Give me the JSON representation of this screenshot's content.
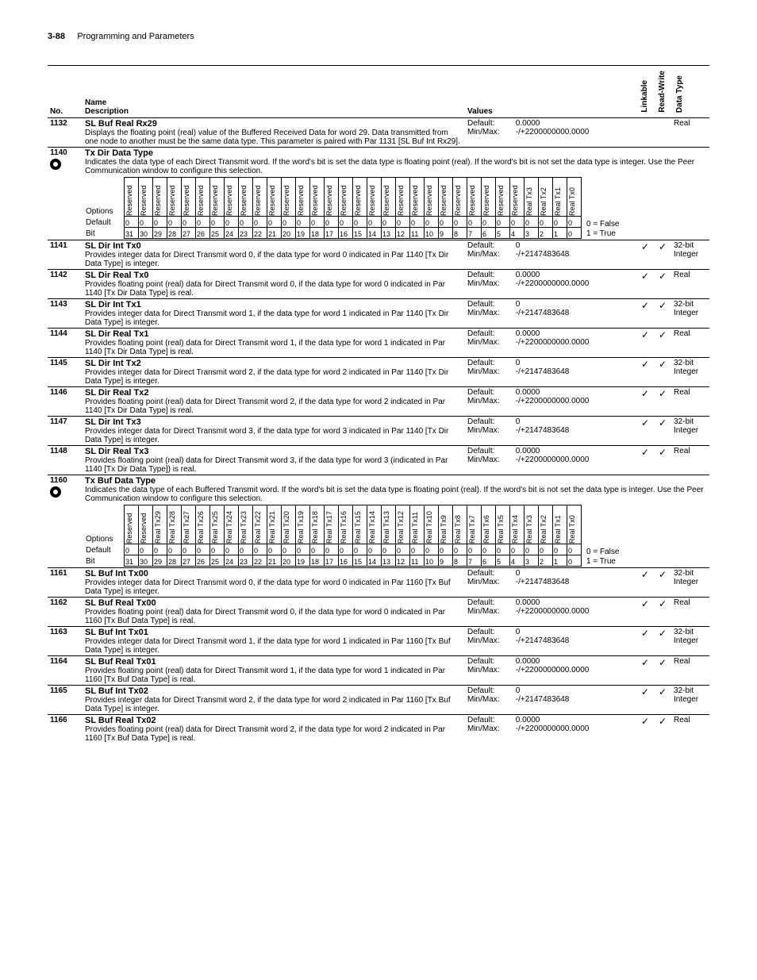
{
  "header": {
    "page_num": "3-88",
    "section": "Programming and Parameters"
  },
  "columns": {
    "no": "No.",
    "name_desc_line1": "Name",
    "name_desc_line2": "Description",
    "values": "Values",
    "linkable": "Linkable",
    "read_write": "Read-Write",
    "data_type": "Data Type"
  },
  "legend": {
    "falseText": "0 = False",
    "trueText": "1 = True"
  },
  "check_glyph": "✓",
  "bitfield1": {
    "optionsLabel": "Options",
    "defaultLabel": "Default",
    "bitLabel": "Bit",
    "headers": [
      "Reserved",
      "Reserved",
      "Reserved",
      "Reserved",
      "Reserved",
      "Reserved",
      "Reserved",
      "Reserved",
      "Reserved",
      "Reserved",
      "Reserved",
      "Reserved",
      "Reserved",
      "Reserved",
      "Reserved",
      "Reserved",
      "Reserved",
      "Reserved",
      "Reserved",
      "Reserved",
      "Reserved",
      "Reserved",
      "Reserved",
      "Reserved",
      "Reserved",
      "Reserved",
      "Reserved",
      "Reserved",
      "Real Tx3",
      "Real Tx2",
      "Real Tx1",
      "Real Tx0"
    ],
    "defaults": [
      "0",
      "0",
      "0",
      "0",
      "0",
      "0",
      "0",
      "0",
      "0",
      "0",
      "0",
      "0",
      "0",
      "0",
      "0",
      "0",
      "0",
      "0",
      "0",
      "0",
      "0",
      "0",
      "0",
      "0",
      "0",
      "0",
      "0",
      "0",
      "0",
      "0",
      "0",
      "0"
    ],
    "bits": [
      "31",
      "30",
      "29",
      "28",
      "27",
      "26",
      "25",
      "24",
      "23",
      "22",
      "21",
      "20",
      "19",
      "18",
      "17",
      "16",
      "15",
      "14",
      "13",
      "12",
      "11",
      "10",
      "9",
      "8",
      "7",
      "6",
      "5",
      "4",
      "3",
      "2",
      "1",
      "0"
    ]
  },
  "bitfield2": {
    "optionsLabel": "Options",
    "defaultLabel": "Default",
    "bitLabel": "Bit",
    "headers": [
      "Reserved",
      "Reserved",
      "Real Tx29",
      "Real Tx28",
      "Real Tx27",
      "Real Tx26",
      "Real Tx25",
      "Real Tx24",
      "Real Tx23",
      "Real Tx22",
      "Real Tx21",
      "Real Tx20",
      "Real Tx19",
      "Real Tx18",
      "Real Tx17",
      "Real Tx16",
      "Real Tx15",
      "Real Tx14",
      "Real Tx13",
      "Real Tx12",
      "Real Tx11",
      "Real Tx10",
      "Real Tx9",
      "Real Tx8",
      "Real Tx7",
      "Real Tx6",
      "Real Tx5",
      "Real Tx4",
      "Real Tx3",
      "Real Tx2",
      "Real Tx1",
      "Real Tx0"
    ],
    "defaults": [
      "0",
      "0",
      "0",
      "0",
      "0",
      "0",
      "0",
      "0",
      "0",
      "0",
      "0",
      "0",
      "0",
      "0",
      "0",
      "0",
      "0",
      "0",
      "0",
      "0",
      "0",
      "0",
      "0",
      "0",
      "0",
      "0",
      "0",
      "0",
      "0",
      "0",
      "0",
      "0"
    ],
    "bits": [
      "31",
      "30",
      "29",
      "28",
      "27",
      "26",
      "25",
      "24",
      "23",
      "22",
      "21",
      "20",
      "19",
      "18",
      "17",
      "16",
      "15",
      "14",
      "13",
      "12",
      "11",
      "10",
      "9",
      "8",
      "7",
      "6",
      "5",
      "4",
      "3",
      "2",
      "1",
      "0"
    ]
  },
  "rows": [
    {
      "no": "1132",
      "name": "SL Buf Real Rx29",
      "desc": "Displays the floating point (real) value of the Buffered Received Data for word 29. Data transmitted from one node to another must be the same data type. This parameter is paired with Par 1131 [SL Buf Int Rx29].",
      "v1l": "Default:",
      "v1": "0.0000",
      "v2l": "Min/Max:",
      "v2": "-/+2200000000.0000",
      "link": "",
      "rw": "",
      "dtype": "Real",
      "eye": false
    },
    {
      "no": "1140",
      "name": "Tx Dir Data Type",
      "desc": "Indicates the data type of each Direct Transmit word. If the word's bit is set the data type is floating point (real). If the word's bit is not set the data type is integer. Use the Peer Communication window to configure this selection.",
      "bitfield": 1,
      "eye": true,
      "fullwidth": true
    },
    {
      "no": "1141",
      "name": "SL Dir Int Tx0",
      "desc": "Provides integer data for Direct Transmit word 0, if the data type for word 0 indicated in Par 1140 [Tx Dir Data Type] is integer.",
      "v1l": "Default:",
      "v1": "0",
      "v2l": "Min/Max:",
      "v2": "-/+2147483648",
      "link": "✓",
      "rw": "✓",
      "dtype": "32-bit Integer"
    },
    {
      "no": "1142",
      "name": "SL Dir Real Tx0",
      "desc": "Provides floating point (real) data for Direct Transmit word 0, if the data type for word 0 indicated in Par 1140 [Tx Dir Data Type] is real.",
      "v1l": "Default:",
      "v1": "0.0000",
      "v2l": "Min/Max:",
      "v2": "-/+2200000000.0000",
      "link": "✓",
      "rw": "✓",
      "dtype": "Real"
    },
    {
      "no": "1143",
      "name": "SL Dir Int Tx1",
      "desc": "Provides integer data for Direct Transmit word 1, if the data type for word 1 indicated in Par 1140 [Tx Dir Data Type] is integer.",
      "v1l": "Default:",
      "v1": "0",
      "v2l": "Min/Max:",
      "v2": "-/+2147483648",
      "link": "✓",
      "rw": "✓",
      "dtype": "32-bit Integer"
    },
    {
      "no": "1144",
      "name": "SL Dir Real Tx1",
      "desc": "Provides floating point (real) data for Direct Transmit word 1, if the data type for word 1 indicated in Par 1140 [Tx Dir Data Type] is real.",
      "v1l": "Default:",
      "v1": "0.0000",
      "v2l": "Min/Max:",
      "v2": "-/+2200000000.0000",
      "link": "✓",
      "rw": "✓",
      "dtype": "Real"
    },
    {
      "no": "1145",
      "name": "SL Dir Int Tx2",
      "desc": "Provides integer data for Direct Transmit word 2, if the data type for word 2 indicated in Par 1140 [Tx Dir Data Type] is integer.",
      "v1l": "Default:",
      "v1": "0",
      "v2l": "Min/Max:",
      "v2": "-/+2147483648",
      "link": "✓",
      "rw": "✓",
      "dtype": "32-bit Integer"
    },
    {
      "no": "1146",
      "name": "SL Dir Real Tx2",
      "desc": "Provides floating point (real) data for Direct Transmit word 2, if the data type for word 2 indicated in Par 1140 [Tx Dir Data Type] is real.",
      "v1l": "Default:",
      "v1": "0.0000",
      "v2l": "Min/Max:",
      "v2": "-/+2200000000.0000",
      "link": "✓",
      "rw": "✓",
      "dtype": "Real"
    },
    {
      "no": "1147",
      "name": "SL Dir Int Tx3",
      "desc": "Provides integer data for Direct Transmit word 3, if the data type for word 3 indicated in Par 1140 [Tx Dir Data Type] is integer.",
      "v1l": "Default:",
      "v1": "0",
      "v2l": "Min/Max:",
      "v2": "-/+2147483648",
      "link": "✓",
      "rw": "✓",
      "dtype": "32-bit Integer"
    },
    {
      "no": "1148",
      "name": "SL Dir Real Tx3",
      "desc": "Provides floating point (real) data for Direct Transmit word 3, if the data type for word 3 (indicated in Par 1140 [Tx Dir Data Type]) is real.",
      "v1l": "Default:",
      "v1": "0.0000",
      "v2l": "Min/Max:",
      "v2": "-/+2200000000.0000",
      "link": "✓",
      "rw": "✓",
      "dtype": "Real"
    },
    {
      "no": "1160",
      "name": "Tx Buf Data Type",
      "desc": "Indicates the data type of each Buffered Transmit word. If the word's bit is set the data type is floating point (real). If the word's bit is not set the data type is integer. Use the Peer Communication window to configure this selection.",
      "bitfield": 2,
      "eye": true,
      "fullwidth": true
    },
    {
      "no": "1161",
      "name": "SL Buf Int Tx00",
      "desc": "Provides integer data for Direct Transmit word 0, if the data type for word 0 indicated in Par 1160 [Tx Buf Data Type] is integer.",
      "v1l": "Default:",
      "v1": "0",
      "v2l": "Min/Max:",
      "v2": "-/+2147483648",
      "link": "✓",
      "rw": "✓",
      "dtype": "32-bit Integer"
    },
    {
      "no": "1162",
      "name": "SL Buf Real Tx00",
      "desc": "Provides floating point (real) data for Direct Transmit word 0, if the data type for word 0 indicated in Par 1160 [Tx Buf Data Type] is real.",
      "v1l": "Default:",
      "v1": "0.0000",
      "v2l": "Min/Max:",
      "v2": "-/+2200000000.0000",
      "link": "✓",
      "rw": "✓",
      "dtype": "Real"
    },
    {
      "no": "1163",
      "name": "SL Buf Int Tx01",
      "desc": "Provides integer data for Direct Transmit word 1, if the data type for word 1 indicated in Par 1160 [Tx Buf Data Type] is integer.",
      "v1l": "Default:",
      "v1": "0",
      "v2l": "Min/Max:",
      "v2": "-/+2147483648",
      "link": "✓",
      "rw": "✓",
      "dtype": "32-bit Integer"
    },
    {
      "no": "1164",
      "name": "SL Buf Real Tx01",
      "desc": "Provides floating point (real) data for Direct Transmit word 1, if the data type for word 1 indicated in Par 1160 [Tx Buf Data Type] is real.",
      "v1l": "Default:",
      "v1": "0.0000",
      "v2l": "Min/Max:",
      "v2": "-/+2200000000.0000",
      "link": "✓",
      "rw": "✓",
      "dtype": "Real"
    },
    {
      "no": "1165",
      "name": "SL Buf Int Tx02",
      "desc": "Provides integer data for Direct Transmit word 2, if the data type for word 2 indicated in Par 1160 [Tx Buf Data Type] is integer.",
      "v1l": "Default:",
      "v1": "0",
      "v2l": "Min/Max:",
      "v2": "-/+2147483648",
      "link": "✓",
      "rw": "✓",
      "dtype": "32-bit Integer"
    },
    {
      "no": "1166",
      "name": "SL Buf Real Tx02",
      "desc": "Provides floating point (real) data for Direct Transmit word 2, if the data type for word 2 indicated in Par 1160 [Tx Buf Data Type] is real.",
      "v1l": "Default:",
      "v1": "0.0000",
      "v2l": "Min/Max:",
      "v2": "-/+2200000000.0000",
      "link": "✓",
      "rw": "✓",
      "dtype": "Real"
    }
  ]
}
